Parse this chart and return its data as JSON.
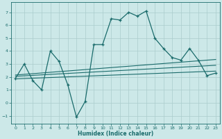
{
  "xlabel": "Humidex (Indice chaleur)",
  "background_color": "#cce8e8",
  "grid_color": "#aacccc",
  "line_color": "#1a6b6b",
  "xlim": [
    -0.5,
    23.5
  ],
  "ylim": [
    -1.6,
    7.8
  ],
  "yticks": [
    -1,
    0,
    1,
    2,
    3,
    4,
    5,
    6,
    7
  ],
  "xticks": [
    0,
    1,
    2,
    3,
    4,
    5,
    6,
    7,
    8,
    9,
    10,
    11,
    12,
    13,
    14,
    15,
    16,
    17,
    18,
    19,
    20,
    21,
    22,
    23
  ],
  "line1_x": [
    0,
    1,
    2,
    3,
    4,
    5,
    6,
    7,
    8,
    9,
    10,
    11,
    12,
    13,
    14,
    15,
    16,
    17,
    18,
    19,
    20,
    21,
    22,
    23
  ],
  "line1_y": [
    1.9,
    3.0,
    1.7,
    1.0,
    4.0,
    3.2,
    1.4,
    -1.1,
    0.1,
    4.5,
    4.5,
    6.5,
    6.4,
    7.0,
    6.7,
    7.1,
    5.0,
    4.2,
    3.5,
    3.3,
    4.2,
    3.3,
    2.1,
    2.3
  ],
  "line2_x": [
    0,
    23
  ],
  "line2_y": [
    2.15,
    3.35
  ],
  "line3_x": [
    0,
    23
  ],
  "line3_y": [
    2.05,
    2.9
  ],
  "line4_x": [
    0,
    23
  ],
  "line4_y": [
    1.85,
    2.45
  ]
}
